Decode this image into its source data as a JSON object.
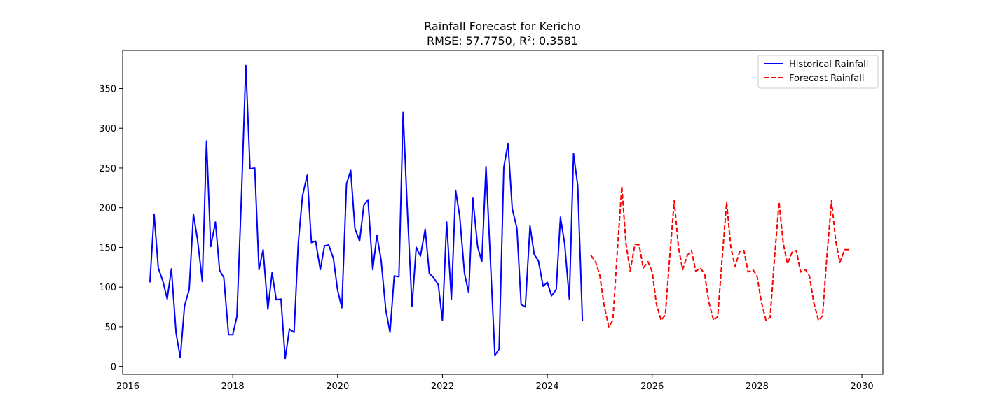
{
  "chart_data": {
    "type": "line",
    "title": "Rainfall Forecast for Kericho",
    "subtitle": "RMSE: 57.7750, R²: 0.3581",
    "xlabel": "",
    "ylabel": "",
    "xlim": [
      2015.9,
      2030.4
    ],
    "ylim": [
      -10,
      398
    ],
    "x_ticks": [
      "2016",
      "2018",
      "2020",
      "2022",
      "2024",
      "2026",
      "2028",
      "2030"
    ],
    "y_ticks": [
      "0",
      "50",
      "100",
      "150",
      "200",
      "250",
      "300",
      "350"
    ],
    "grid": false,
    "legend_position": "top-right",
    "series": [
      {
        "name": "Historical Rainfall",
        "color": "#0000ff",
        "style": "solid",
        "x": [
          2016.42,
          2016.5,
          2016.58,
          2016.67,
          2016.75,
          2016.83,
          2016.92,
          2017.0,
          2017.08,
          2017.17,
          2017.25,
          2017.33,
          2017.42,
          2017.5,
          2017.58,
          2017.67,
          2017.75,
          2017.83,
          2017.92,
          2018.0,
          2018.08,
          2018.17,
          2018.25,
          2018.33,
          2018.42,
          2018.5,
          2018.58,
          2018.67,
          2018.75,
          2018.83,
          2018.92,
          2019.0,
          2019.08,
          2019.17,
          2019.25,
          2019.33,
          2019.42,
          2019.5,
          2019.58,
          2019.67,
          2019.75,
          2019.83,
          2019.92,
          2020.0,
          2020.08,
          2020.17,
          2020.25,
          2020.33,
          2020.42,
          2020.5,
          2020.58,
          2020.67,
          2020.75,
          2020.83,
          2020.92,
          2021.0,
          2021.08,
          2021.17,
          2021.25,
          2021.33,
          2021.42,
          2021.5,
          2021.58,
          2021.67,
          2021.75,
          2021.83,
          2021.92,
          2022.0,
          2022.08,
          2022.17,
          2022.25,
          2022.33,
          2022.42,
          2022.5,
          2022.58,
          2022.67,
          2022.75,
          2022.83,
          2022.92,
          2023.0,
          2023.08,
          2023.17,
          2023.25,
          2023.33,
          2023.42,
          2023.5,
          2023.58,
          2023.67,
          2023.75,
          2023.83,
          2023.92,
          2024.0,
          2024.08,
          2024.17,
          2024.25,
          2024.33,
          2024.42,
          2024.5,
          2024.58,
          2024.67
        ],
        "values": [
          106,
          192,
          124,
          107,
          85,
          123,
          42,
          11,
          76,
          97,
          192,
          159,
          107,
          284,
          151,
          182,
          121,
          112,
          40,
          40,
          63,
          223,
          379,
          249,
          250,
          122,
          147,
          72,
          118,
          84,
          85,
          10,
          47,
          43,
          156,
          215,
          241,
          156,
          158,
          122,
          152,
          153,
          136,
          96,
          74,
          230,
          247,
          174,
          158,
          203,
          210,
          122,
          165,
          134,
          71,
          43,
          114,
          113,
          320,
          198,
          76,
          150,
          139,
          173,
          117,
          112,
          103,
          58,
          182,
          85,
          222,
          189,
          117,
          93,
          212,
          151,
          132,
          252,
          125,
          14,
          22,
          251,
          281,
          199,
          174,
          78,
          75,
          177,
          141,
          133,
          101,
          106,
          89,
          97,
          188,
          155,
          85,
          268,
          228,
          57
        ]
      },
      {
        "name": "Forecast Rainfall",
        "color": "#ff0000",
        "style": "dashed",
        "x": [
          2024.83,
          2024.92,
          2025.0,
          2025.08,
          2025.17,
          2025.25,
          2025.33,
          2025.42,
          2025.5,
          2025.58,
          2025.67,
          2025.75,
          2025.83,
          2025.92,
          2026.0,
          2026.08,
          2026.17,
          2026.25,
          2026.33,
          2026.42,
          2026.5,
          2026.58,
          2026.67,
          2026.75,
          2026.83,
          2026.92,
          2027.0,
          2027.08,
          2027.17,
          2027.25,
          2027.33,
          2027.42,
          2027.5,
          2027.58,
          2027.67,
          2027.75,
          2027.83,
          2027.92,
          2028.0,
          2028.08,
          2028.17,
          2028.25,
          2028.33,
          2028.42,
          2028.5,
          2028.58,
          2028.67,
          2028.75,
          2028.83,
          2028.92,
          2029.0,
          2029.08,
          2029.17,
          2029.25,
          2029.33,
          2029.42,
          2029.5,
          2029.58,
          2029.67,
          2029.75
        ],
        "values": [
          140,
          132,
          115,
          78,
          50,
          58,
          140,
          227,
          155,
          120,
          154,
          153,
          124,
          132,
          119,
          79,
          58,
          65,
          135,
          209,
          150,
          122,
          140,
          146,
          120,
          124,
          116,
          81,
          58,
          63,
          133,
          207,
          150,
          126,
          145,
          146,
          119,
          122,
          114,
          82,
          58,
          62,
          134,
          207,
          155,
          129,
          144,
          146,
          119,
          122,
          114,
          81,
          58,
          64,
          137,
          209,
          158,
          131,
          147,
          147
        ]
      }
    ]
  }
}
